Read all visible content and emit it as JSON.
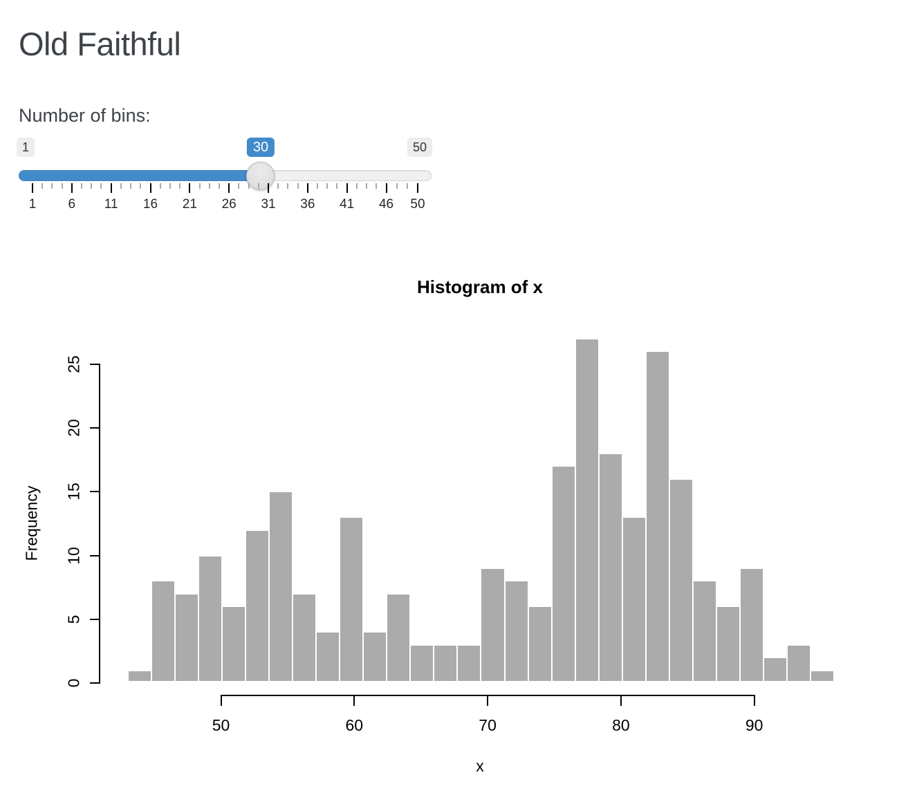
{
  "page": {
    "title": "Old Faithful"
  },
  "slider": {
    "label": "Number of bins:",
    "min_label": "1",
    "max_label": "50",
    "value_label": "30",
    "min": 1,
    "max": 50,
    "value": 30,
    "grid_labels": [
      "1",
      "6",
      "11",
      "16",
      "21",
      "26",
      "31",
      "36",
      "41",
      "46",
      "50"
    ],
    "grid_values": [
      1,
      6,
      11,
      16,
      21,
      26,
      31,
      36,
      41,
      46,
      50
    ],
    "colors": {
      "accent": "#428bca",
      "track": "#f0f0f0",
      "label_bg": "#ededed"
    }
  },
  "chart_data": {
    "type": "bar",
    "title": "Histogram of x",
    "xlabel": "x",
    "ylabel": "Frequency",
    "bin_start": 43,
    "bin_end": 96,
    "bin_count": 30,
    "bin_width": 1.766667,
    "counts": [
      1,
      8,
      7,
      10,
      6,
      12,
      15,
      7,
      4,
      13,
      4,
      7,
      3,
      3,
      3,
      9,
      8,
      6,
      17,
      27,
      18,
      13,
      26,
      16,
      8,
      6,
      9,
      2,
      3,
      1
    ],
    "x_ticks": [
      50,
      60,
      70,
      80,
      90
    ],
    "y_ticks": [
      0,
      5,
      10,
      15,
      20,
      25
    ],
    "xlim": [
      43,
      96
    ],
    "ylim": [
      0,
      27
    ],
    "grid": false,
    "legend": "none",
    "bar_color": "#ababab",
    "bar_border": "#ffffff"
  }
}
